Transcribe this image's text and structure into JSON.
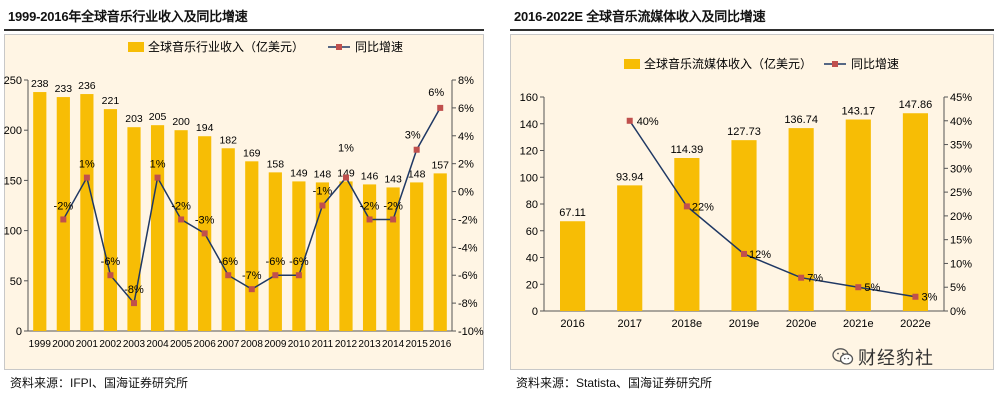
{
  "left": {
    "title": "1999-2016年全球音乐行业收入及同比增速",
    "source": "资料来源：IFPI、国海证券研究所",
    "legend": {
      "bar": "全球音乐行业收入（亿美元）",
      "line": "同比增速"
    },
    "colors": {
      "bar": "#f7bd05",
      "line": "#1f3864",
      "marker": "#c0504d"
    },
    "chart_data": {
      "type": "bar+line",
      "categories": [
        "1999",
        "2000",
        "2001",
        "2002",
        "2003",
        "2004",
        "2005",
        "2006",
        "2007",
        "2008",
        "2009",
        "2010",
        "2011",
        "2012",
        "2013",
        "2014",
        "2015",
        "2016"
      ],
      "series": [
        {
          "name": "全球音乐行业收入（亿美元）",
          "axis": "left",
          "values": [
            238,
            233,
            236,
            221,
            203,
            205,
            200,
            194,
            182,
            169,
            158,
            149,
            148,
            149,
            146,
            143,
            148,
            157
          ]
        },
        {
          "name": "同比增速",
          "axis": "right",
          "values": [
            null,
            -2,
            1,
            -6,
            -8,
            1,
            -2,
            -3,
            -6,
            -7,
            -6,
            -6,
            -1,
            1,
            -2,
            -2,
            3,
            6
          ],
          "labels": [
            "",
            "-2%",
            "1%",
            "-6%",
            "-8%",
            "1%",
            "-2%",
            "-3%",
            "-6%",
            "-7%",
            "-6%",
            "-6%",
            "-1%",
            "1%",
            "-2%",
            "-2%",
            "3%",
            "6%"
          ]
        }
      ],
      "y_left": {
        "min": 0,
        "max": 250,
        "step": 50,
        "ticks": [
          "0",
          "50",
          "100",
          "150",
          "200",
          "250"
        ]
      },
      "y_right": {
        "min": -10,
        "max": 8,
        "step": 2,
        "ticks": [
          "-10%",
          "-8%",
          "-6%",
          "-4%",
          "-2%",
          "0%",
          "2%",
          "4%",
          "6%",
          "8%"
        ]
      }
    }
  },
  "right": {
    "title": "2016-2022E 全球音乐流媒体收入及同比增速",
    "source": "资料来源：Statista、国海证券研究所",
    "legend": {
      "bar": "全球音乐流媒体收入（亿美元）",
      "line": "同比增速"
    },
    "colors": {
      "bar": "#f7bd05",
      "line": "#1f3864",
      "marker": "#c0504d"
    },
    "chart_data": {
      "type": "bar+line",
      "categories": [
        "2016",
        "2017",
        "2018e",
        "2019e",
        "2020e",
        "2021e",
        "2022e"
      ],
      "series": [
        {
          "name": "全球音乐流媒体收入（亿美元）",
          "axis": "left",
          "values": [
            67.11,
            93.94,
            114.39,
            127.73,
            136.74,
            143.17,
            147.86
          ],
          "labels": [
            "67.11",
            "93.94",
            "114.39",
            "127.73",
            "136.74",
            "143.17",
            "147.86"
          ]
        },
        {
          "name": "同比增速",
          "axis": "right",
          "values": [
            null,
            40,
            22,
            12,
            7,
            5,
            3
          ],
          "labels": [
            "",
            "40%",
            "22%",
            "12%",
            "7%",
            "5%",
            "3%"
          ]
        }
      ],
      "y_left": {
        "min": 0,
        "max": 160,
        "step": 20,
        "ticks": [
          "0",
          "20",
          "40",
          "60",
          "80",
          "100",
          "120",
          "140",
          "160"
        ]
      },
      "y_right": {
        "min": 0,
        "max": 45,
        "step": 5,
        "ticks": [
          "0%",
          "5%",
          "10%",
          "15%",
          "20%",
          "25%",
          "30%",
          "35%",
          "40%",
          "45%"
        ]
      }
    }
  },
  "watermark": {
    "text": "财经豹社",
    "icon": "wechat-icon"
  }
}
